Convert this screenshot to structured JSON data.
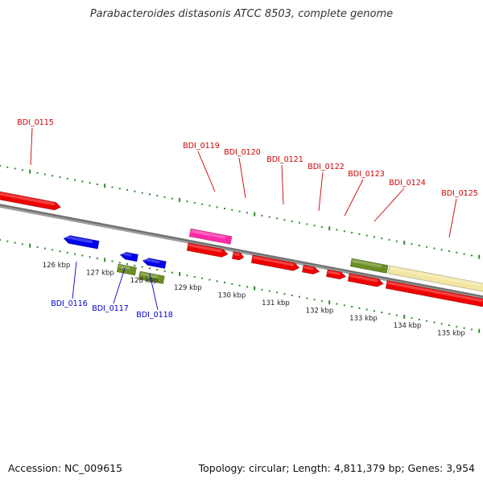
{
  "title": "Parabacteroides distasonis ATCC 8503, complete genome",
  "footer": {
    "accession": "Accession: NC_009615",
    "summary": "Topology: circular; Length: 4,811,379 bp; Genes: 3,954"
  },
  "colors": {
    "backbone": "#808080",
    "tick": "#2e8b2e",
    "cds": "#ee0000",
    "other_a": "#0000ee",
    "other_b": "#6b8e23",
    "rna": "#ff2aa8",
    "pseudo": "#f2e6a0",
    "label_top": "#cc0000",
    "label_bottom": "#0000cc"
  },
  "ruler": {
    "unit": "kbp",
    "labels": [
      "126 kbp",
      "127 kbp",
      "128 kbp",
      "129 kbp",
      "130 kbp",
      "131 kbp",
      "132 kbp",
      "133 kbp",
      "134 kbp",
      "135 kbp"
    ]
  },
  "genes": [
    {
      "id": "BDI_0115",
      "label_side": "top"
    },
    {
      "id": "BDI_0116",
      "label_side": "bottom"
    },
    {
      "id": "BDI_0117",
      "label_side": "bottom"
    },
    {
      "id": "BDI_0118",
      "label_side": "bottom"
    },
    {
      "id": "BDI_0119",
      "label_side": "top"
    },
    {
      "id": "BDI_0120",
      "label_side": "top"
    },
    {
      "id": "BDI_0121",
      "label_side": "top"
    },
    {
      "id": "BDI_0122",
      "label_side": "top"
    },
    {
      "id": "BDI_0123",
      "label_side": "top"
    },
    {
      "id": "BDI_0124",
      "label_side": "top"
    },
    {
      "id": "BDI_0125",
      "label_side": "top"
    }
  ]
}
